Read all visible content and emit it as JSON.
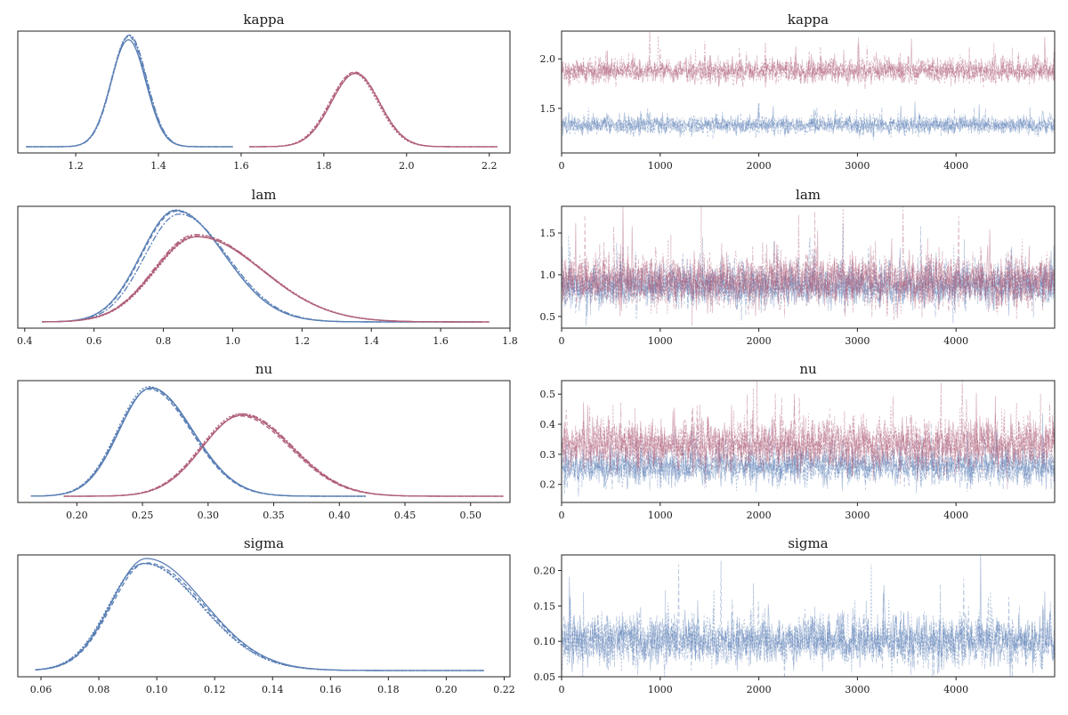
{
  "chart_data": [
    {
      "type": "line",
      "kind": "kde",
      "title": "kappa",
      "xlim": [
        1.06,
        2.25
      ],
      "xticks": [
        1.2,
        1.4,
        1.6,
        1.8,
        2.0,
        2.2
      ],
      "xtick_labels": [
        "1.2",
        "1.4",
        "1.6",
        "1.8",
        "2.0",
        "2.2"
      ],
      "yticks_shown": false,
      "series": [
        {
          "color": "#5a7fb5",
          "peak_x": 1.33,
          "peak_y": 1.0,
          "sd": 0.042,
          "range": [
            1.08,
            1.58
          ]
        },
        {
          "color": "#b0607a",
          "peak_x": 1.875,
          "peak_y": 0.68,
          "sd": 0.058,
          "range": [
            1.62,
            2.22
          ]
        }
      ]
    },
    {
      "type": "line",
      "kind": "trace",
      "title": "kappa",
      "xlim": [
        0,
        5000
      ],
      "xticks": [
        0,
        1000,
        2000,
        3000,
        4000
      ],
      "xtick_labels": [
        "0",
        "1000",
        "2000",
        "3000",
        "4000"
      ],
      "ylim": [
        1.05,
        2.28
      ],
      "yticks": [
        1.5,
        2.0
      ],
      "ytick_labels": [
        "1.5",
        "2.0"
      ],
      "series": [
        {
          "color": "#5a7fb5",
          "mean": 1.33,
          "sd": 0.045
        },
        {
          "color": "#b0607a",
          "mean": 1.88,
          "sd": 0.06
        }
      ]
    },
    {
      "type": "line",
      "kind": "kde",
      "title": "lam",
      "xlim": [
        0.38,
        1.8
      ],
      "xticks": [
        0.4,
        0.6,
        0.8,
        1.0,
        1.2,
        1.4,
        1.6,
        1.8
      ],
      "xtick_labels": [
        "0.4",
        "0.6",
        "0.8",
        "1.0",
        "1.2",
        "1.4",
        "1.6",
        "1.8"
      ],
      "yticks_shown": false,
      "series": [
        {
          "color": "#5a7fb5",
          "peak_x": 0.84,
          "peak_y": 1.0,
          "sd_left": 0.1,
          "sd_right": 0.14,
          "range": [
            0.45,
            1.72
          ]
        },
        {
          "color": "#b0607a",
          "peak_x": 0.9,
          "peak_y": 0.78,
          "sd_left": 0.12,
          "sd_right": 0.19,
          "range": [
            0.45,
            1.74
          ]
        }
      ]
    },
    {
      "type": "line",
      "kind": "trace",
      "title": "lam",
      "xlim": [
        0,
        5000
      ],
      "xticks": [
        0,
        1000,
        2000,
        3000,
        4000
      ],
      "xtick_labels": [
        "0",
        "1000",
        "2000",
        "3000",
        "4000"
      ],
      "ylim": [
        0.36,
        1.82
      ],
      "yticks": [
        0.5,
        1.0,
        1.5
      ],
      "ytick_labels": [
        "0.5",
        "1.0",
        "1.5"
      ],
      "series": [
        {
          "color": "#5a7fb5",
          "mean": 0.86,
          "sd": 0.12
        },
        {
          "color": "#b0607a",
          "mean": 0.93,
          "sd": 0.15
        }
      ]
    },
    {
      "type": "line",
      "kind": "kde",
      "title": "nu",
      "xlim": [
        0.155,
        0.53
      ],
      "xticks": [
        0.15,
        0.2,
        0.25,
        0.3,
        0.35,
        0.4,
        0.45,
        0.5
      ],
      "xtick_labels": [
        "0.15",
        "0.20",
        "0.25",
        "0.30",
        "0.35",
        "0.40",
        "0.45",
        "0.50"
      ],
      "yticks_shown": false,
      "series": [
        {
          "color": "#5a7fb5",
          "peak_x": 0.255,
          "peak_y": 1.0,
          "sd_left": 0.024,
          "sd_right": 0.032,
          "range": [
            0.165,
            0.42
          ]
        },
        {
          "color": "#b0607a",
          "peak_x": 0.325,
          "peak_y": 0.75,
          "sd_left": 0.03,
          "sd_right": 0.038,
          "range": [
            0.19,
            0.525
          ]
        }
      ]
    },
    {
      "type": "line",
      "kind": "trace",
      "title": "nu",
      "xlim": [
        0,
        5000
      ],
      "xticks": [
        0,
        1000,
        2000,
        3000,
        4000
      ],
      "xtick_labels": [
        "0",
        "1000",
        "2000",
        "3000",
        "4000"
      ],
      "ylim": [
        0.14,
        0.545
      ],
      "yticks": [
        0.2,
        0.3,
        0.4,
        0.5
      ],
      "ytick_labels": [
        "0.2",
        "0.3",
        "0.4",
        "0.5"
      ],
      "series": [
        {
          "color": "#5a7fb5",
          "mean": 0.26,
          "sd": 0.03
        },
        {
          "color": "#b0607a",
          "mean": 0.33,
          "sd": 0.04
        }
      ]
    },
    {
      "type": "line",
      "kind": "kde",
      "title": "sigma",
      "xlim": [
        0.052,
        0.222
      ],
      "xticks": [
        0.06,
        0.08,
        0.1,
        0.12,
        0.14,
        0.16,
        0.18,
        0.2,
        0.22
      ],
      "xtick_labels": [
        "0.06",
        "0.08",
        "0.10",
        "0.12",
        "0.14",
        "0.16",
        "0.18",
        "0.20",
        "0.22"
      ],
      "yticks_shown": false,
      "series": [
        {
          "color": "#5a7fb5",
          "peak_x": 0.096,
          "peak_y": 1.0,
          "sd_left": 0.012,
          "sd_right": 0.02,
          "range": [
            0.058,
            0.213
          ]
        }
      ]
    },
    {
      "type": "line",
      "kind": "trace",
      "title": "sigma",
      "xlim": [
        0,
        5000
      ],
      "xticks": [
        0,
        1000,
        2000,
        3000,
        4000
      ],
      "xtick_labels": [
        "0",
        "1000",
        "2000",
        "3000",
        "4000"
      ],
      "ylim": [
        0.05,
        0.222
      ],
      "yticks": [
        0.05,
        0.1,
        0.15,
        0.2
      ],
      "ytick_labels": [
        "0.05",
        "0.10",
        "0.15",
        "0.20"
      ],
      "series": [
        {
          "color": "#5a7fb5",
          "mean": 0.1,
          "sd": 0.018
        }
      ]
    }
  ]
}
